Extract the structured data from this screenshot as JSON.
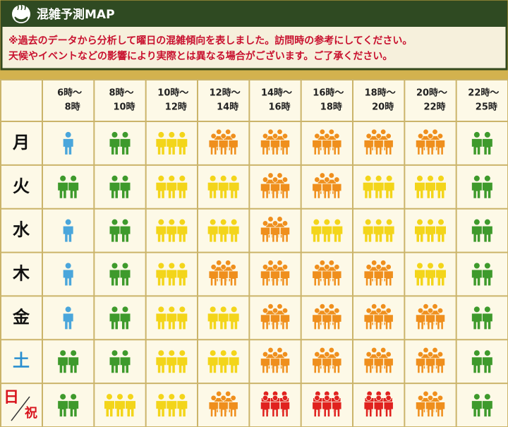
{
  "header": {
    "title": "混雑予測MAP",
    "notes": [
      "※過去のデータから分析して曜日の混雑傾向を表しました。訪問時の参考にしてください。",
      "天候やイベントなどの影響により実際とは異なる場合がございます。ご了承ください。"
    ]
  },
  "table": {
    "level_colors": [
      "#4aa6db",
      "#3e9a2c",
      "#f3d51a",
      "#ef8f1d",
      "#e0221f"
    ],
    "columns": [
      {
        "from": "6時～",
        "to": "8時"
      },
      {
        "from": "8時～",
        "to": "10時"
      },
      {
        "from": "10時～",
        "to": "12時"
      },
      {
        "from": "12時～",
        "to": "14時"
      },
      {
        "from": "14時～",
        "to": "16時"
      },
      {
        "from": "16時～",
        "to": "18時"
      },
      {
        "from": "18時～",
        "to": "20時"
      },
      {
        "from": "20時～",
        "to": "22時"
      },
      {
        "from": "22時～",
        "to": "25時"
      }
    ],
    "rows": [
      {
        "day": "月",
        "color": "#111111",
        "levels": [
          1,
          2,
          3,
          4,
          4,
          4,
          4,
          4,
          2
        ]
      },
      {
        "day": "火",
        "color": "#111111",
        "levels": [
          2,
          2,
          3,
          3,
          4,
          4,
          3,
          3,
          2
        ]
      },
      {
        "day": "水",
        "color": "#111111",
        "levels": [
          1,
          2,
          3,
          3,
          4,
          3,
          3,
          3,
          2
        ]
      },
      {
        "day": "木",
        "color": "#111111",
        "levels": [
          1,
          2,
          3,
          4,
          4,
          4,
          4,
          3,
          2
        ]
      },
      {
        "day": "金",
        "color": "#111111",
        "levels": [
          1,
          2,
          3,
          3,
          4,
          4,
          4,
          4,
          2
        ]
      },
      {
        "day": "土",
        "color": "#2a8fd0",
        "levels": [
          2,
          2,
          3,
          3,
          4,
          4,
          4,
          4,
          2
        ]
      },
      {
        "day": "日",
        "holiday": "祝",
        "color": "#d8141c",
        "levels": [
          2,
          3,
          3,
          4,
          5,
          5,
          5,
          4,
          2
        ]
      }
    ]
  }
}
